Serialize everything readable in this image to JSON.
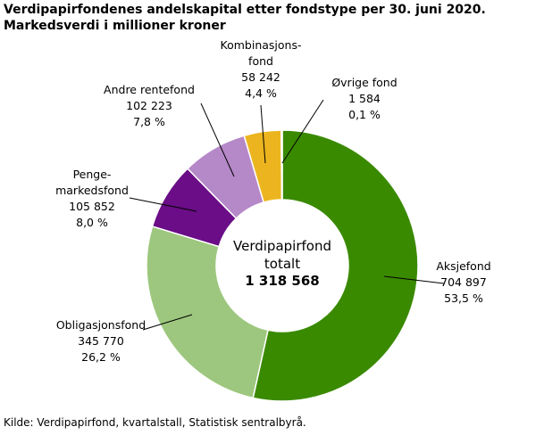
{
  "chart_data": {
    "type": "pie",
    "title": "Verdipapirfondenes andelskapital etter fondstype per 30. juni 2020.",
    "subtitle": "Markedsverdi i millioner kroner",
    "categories": [
      "Aksjefond",
      "Obligasjonsfond",
      "Penge-\nmarkedsfond",
      "Andre rentefond",
      "Kombinasjons-\nfond",
      "Øvrige fond"
    ],
    "values": [
      704897,
      345770,
      105852,
      102223,
      58242,
      1584
    ],
    "value_labels": [
      "704 897",
      "345 770",
      "105 852",
      "102 223",
      "58 242",
      "1 584"
    ],
    "percents": [
      53.5,
      26.2,
      8.0,
      7.8,
      4.4,
      0.1
    ],
    "percent_labels": [
      "53,5 %",
      "26,2 %",
      "8,0 %",
      "7,8 %",
      "4,4 %",
      "0,1 %"
    ],
    "colors": [
      "#3a8a00",
      "#9dc77e",
      "#6a0d86",
      "#b588c8",
      "#ecb51f",
      "#c3d600"
    ],
    "center_label": "Verdipapirfond\ntotalt",
    "total": 1318568,
    "total_label": "1 318 568",
    "source": "Kilde: Verdipapirfond, kvartalstall, Statistisk sentralbyrå."
  }
}
